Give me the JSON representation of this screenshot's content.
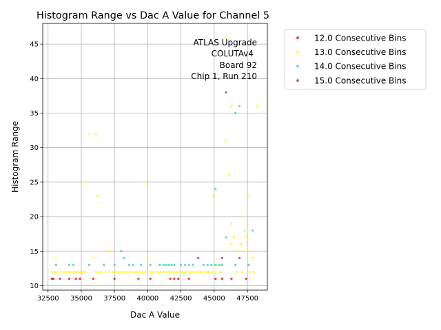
{
  "chart_data": {
    "type": "scatter",
    "title": "Histogram Range vs Dac A Value for Channel 5",
    "xlabel": "Dac A Value",
    "ylabel": "Histogram Range",
    "xlim": [
      32100,
      49000
    ],
    "ylim": [
      9.35,
      48
    ],
    "xticks": [
      32500,
      35000,
      37500,
      40000,
      42500,
      45000,
      47500
    ],
    "xtick_labels": [
      "32500",
      "35000",
      "37500",
      "40000",
      "42500",
      "45000",
      "47500"
    ],
    "yticks": [
      10,
      15,
      20,
      25,
      30,
      35,
      40,
      45
    ],
    "ytick_labels": [
      "10",
      "15",
      "20",
      "25",
      "30",
      "35",
      "40",
      "45"
    ],
    "grid": true,
    "legend_position": "outside-right",
    "annotation": [
      "ATLAS Upgrade",
      "COLUTAv4",
      "Board 92",
      "Chip 1, Run 210"
    ],
    "series": [
      {
        "name": "12.0 Consecutive Bins",
        "color": "#f00000",
        "points": [
          [
            32800,
            11
          ],
          [
            32900,
            11
          ],
          [
            33400,
            11
          ],
          [
            34100,
            11
          ],
          [
            34600,
            11
          ],
          [
            34900,
            11
          ],
          [
            35900,
            11
          ],
          [
            37500,
            11
          ],
          [
            39300,
            11
          ],
          [
            40200,
            11
          ],
          [
            41700,
            11
          ],
          [
            42000,
            11
          ],
          [
            42300,
            11
          ],
          [
            43100,
            11
          ],
          [
            45100,
            11
          ],
          [
            45600,
            11
          ],
          [
            46300,
            11
          ],
          [
            47400,
            11
          ]
        ]
      },
      {
        "name": "13.0 Consecutive Bins",
        "color": "#ffff00",
        "points": [
          [
            32800,
            12
          ],
          [
            33000,
            12
          ],
          [
            33100,
            14
          ],
          [
            33300,
            12
          ],
          [
            33500,
            12
          ],
          [
            33700,
            12
          ],
          [
            33900,
            12
          ],
          [
            34100,
            12
          ],
          [
            34300,
            12
          ],
          [
            34500,
            12
          ],
          [
            34700,
            12
          ],
          [
            34900,
            12
          ],
          [
            35100,
            12
          ],
          [
            35300,
            12
          ],
          [
            35300,
            25
          ],
          [
            35600,
            32
          ],
          [
            35900,
            14
          ],
          [
            36100,
            32
          ],
          [
            36200,
            23
          ],
          [
            36100,
            12
          ],
          [
            36300,
            12
          ],
          [
            36500,
            12
          ],
          [
            36800,
            12
          ],
          [
            37100,
            12
          ],
          [
            37200,
            15
          ],
          [
            37400,
            12
          ],
          [
            37600,
            12
          ],
          [
            37800,
            12
          ],
          [
            38000,
            12
          ],
          [
            38200,
            12
          ],
          [
            38400,
            12
          ],
          [
            38600,
            12
          ],
          [
            38800,
            12
          ],
          [
            39000,
            12
          ],
          [
            39200,
            12
          ],
          [
            39400,
            12
          ],
          [
            39600,
            12
          ],
          [
            39800,
            25
          ],
          [
            39800,
            12
          ],
          [
            40000,
            14
          ],
          [
            40200,
            12
          ],
          [
            40400,
            12
          ],
          [
            40600,
            12
          ],
          [
            40800,
            12
          ],
          [
            41000,
            12
          ],
          [
            41200,
            12
          ],
          [
            41400,
            12
          ],
          [
            41600,
            12
          ],
          [
            41800,
            12
          ],
          [
            42000,
            12
          ],
          [
            42200,
            12
          ],
          [
            42400,
            12
          ],
          [
            42600,
            12
          ],
          [
            42800,
            12
          ],
          [
            43000,
            12
          ],
          [
            43200,
            12
          ],
          [
            43400,
            12
          ],
          [
            43600,
            12
          ],
          [
            43800,
            12
          ],
          [
            44000,
            12
          ],
          [
            44200,
            12
          ],
          [
            44400,
            12
          ],
          [
            44600,
            12
          ],
          [
            44800,
            12
          ],
          [
            44900,
            23
          ],
          [
            45000,
            12
          ],
          [
            45200,
            13
          ],
          [
            45500,
            12
          ],
          [
            45900,
            46
          ],
          [
            45900,
            31
          ],
          [
            46100,
            26
          ],
          [
            46300,
            36
          ],
          [
            46300,
            19
          ],
          [
            46300,
            16
          ],
          [
            46500,
            17
          ],
          [
            46700,
            12
          ],
          [
            46900,
            15
          ],
          [
            47000,
            16
          ],
          [
            47100,
            20
          ],
          [
            47100,
            12
          ],
          [
            47300,
            18
          ],
          [
            47400,
            17
          ],
          [
            47500,
            15
          ],
          [
            47600,
            23
          ],
          [
            47700,
            12
          ],
          [
            47900,
            14
          ],
          [
            48000,
            12
          ],
          [
            48200,
            36
          ]
        ]
      },
      {
        "name": "14.0 Consecutive Bins",
        "color": "#40d0b0",
        "points": [
          [
            33100,
            13
          ],
          [
            34100,
            13
          ],
          [
            34400,
            13
          ],
          [
            35600,
            13
          ],
          [
            36700,
            13
          ],
          [
            37500,
            13
          ],
          [
            38000,
            15
          ],
          [
            38200,
            14
          ],
          [
            38600,
            13
          ],
          [
            38900,
            13
          ],
          [
            39500,
            13
          ],
          [
            40200,
            13
          ],
          [
            40900,
            13
          ],
          [
            41200,
            13
          ],
          [
            41400,
            13
          ],
          [
            41600,
            13
          ],
          [
            41800,
            13
          ],
          [
            42000,
            13
          ],
          [
            42500,
            13
          ],
          [
            42800,
            13
          ],
          [
            43100,
            13
          ],
          [
            43400,
            13
          ],
          [
            44200,
            13
          ],
          [
            44500,
            13
          ],
          [
            44800,
            13
          ],
          [
            45100,
            24
          ],
          [
            45100,
            13
          ],
          [
            45400,
            13
          ],
          [
            45600,
            13
          ],
          [
            45900,
            17
          ],
          [
            46600,
            35
          ],
          [
            46600,
            13
          ],
          [
            46900,
            36
          ],
          [
            47600,
            13
          ],
          [
            47900,
            18
          ]
        ]
      },
      {
        "name": "15.0 Consecutive Bins",
        "color": "#884458",
        "points": [
          [
            43800,
            14
          ],
          [
            45600,
            14
          ],
          [
            45900,
            38
          ],
          [
            46900,
            14
          ]
        ]
      }
    ]
  }
}
